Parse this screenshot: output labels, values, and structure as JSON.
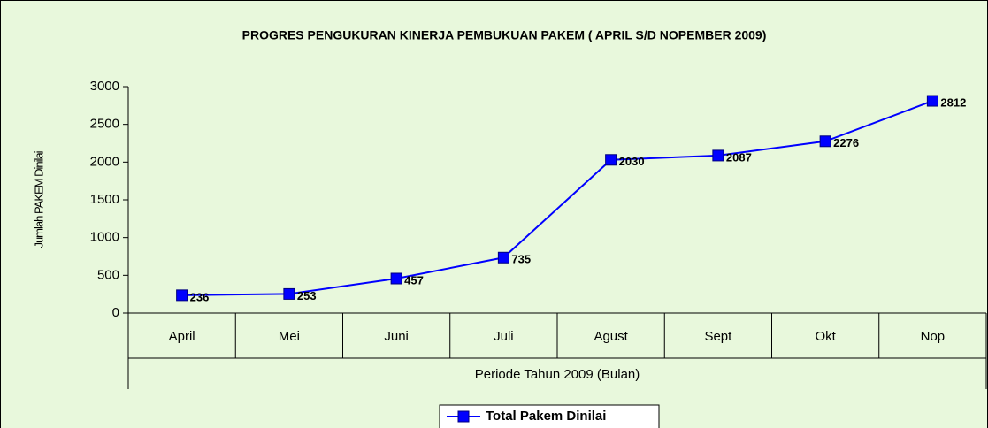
{
  "chart_data": {
    "type": "line",
    "title": "PROGRES PENGUKURAN KINERJA PEMBUKUAN PAKEM ( APRIL S/D NOPEMBER 2009)",
    "x_label": "Periode Tahun 2009 (Bulan)",
    "y_label": "Jumlah PAKEM Dinilai",
    "categories": [
      "April",
      "Mei",
      "Juni",
      "Juli",
      "Agust",
      "Sept",
      "Okt",
      "Nop"
    ],
    "series": [
      {
        "name": "Total Pakem Dinilai",
        "color": "#0000ff",
        "values": [
          236,
          253,
          457,
          735,
          2030,
          2087,
          2276,
          2812
        ]
      }
    ],
    "ylim": [
      0,
      3000
    ],
    "yticks": [
      0,
      500,
      1000,
      1500,
      2000,
      2500,
      3000
    ],
    "grid": false,
    "legend": "bottom"
  }
}
